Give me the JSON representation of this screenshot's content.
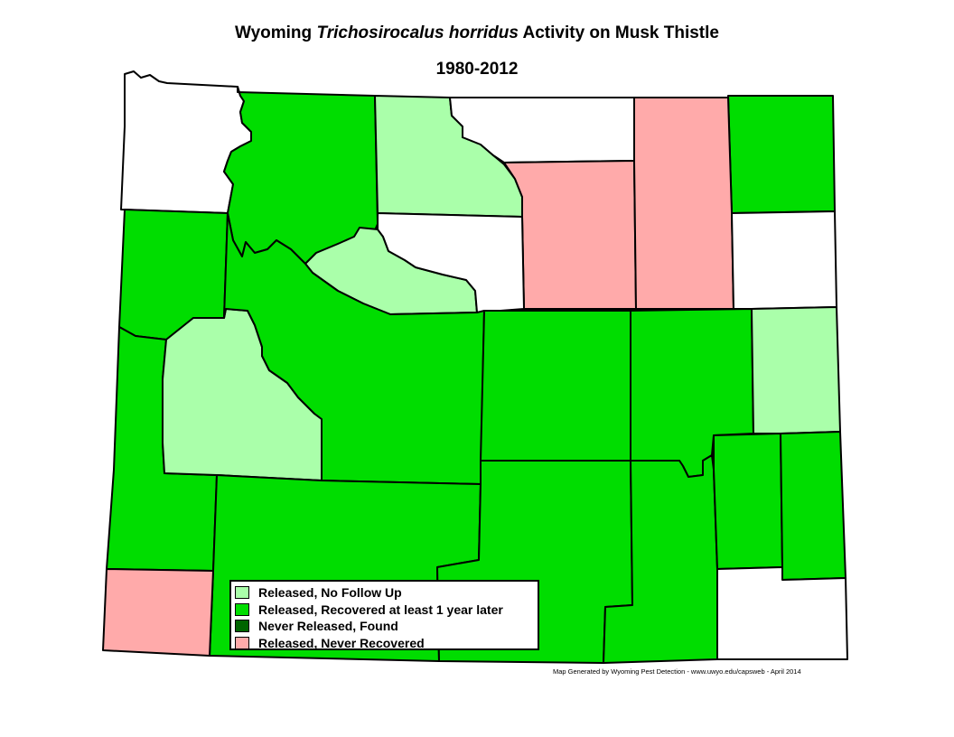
{
  "title": {
    "before": "Wyoming",
    "species": "Trichosirocalus horridus",
    "after": "Activity on Musk Thistle"
  },
  "subtitle": "1980-2012",
  "colors": {
    "released_no_follow_up": "#aaffaa",
    "released_recovered": "#00dd00",
    "never_released_found": "#006400",
    "released_never_recovered": "#ffaaaa",
    "no_activity": "#ffffff"
  },
  "legend": [
    {
      "label": "Released, No Follow Up",
      "status": "released_no_follow_up"
    },
    {
      "label": "Released, Recovered at least 1 year later",
      "status": "released_recovered"
    },
    {
      "label": "Never Released, Found",
      "status": "never_released_found"
    },
    {
      "label": "Released, Never Recovered",
      "status": "released_never_recovered"
    }
  ],
  "credit": "Map Generated by Wyoming Pest Detection - www.uwyo.edu/capsweb - April 2014",
  "counties": [
    {
      "key": "park",
      "status": "no_activity"
    },
    {
      "key": "big-horn",
      "status": "released_recovered"
    },
    {
      "key": "sheridan",
      "status": "released_no_follow_up"
    },
    {
      "key": "campbell",
      "status": "no_activity"
    },
    {
      "key": "crook",
      "status": "released_recovered"
    },
    {
      "key": "johnson",
      "status": "released_never_recovered"
    },
    {
      "key": "weston",
      "status": "released_never_recovered"
    },
    {
      "key": "teton",
      "status": "released_recovered"
    },
    {
      "key": "washakie",
      "status": "released_no_follow_up"
    },
    {
      "key": "hot-springs",
      "status": "no_activity"
    },
    {
      "key": "niobrara",
      "status": "no_activity"
    },
    {
      "key": "lincoln",
      "status": "released_recovered"
    },
    {
      "key": "sublette",
      "status": "released_no_follow_up"
    },
    {
      "key": "fremont",
      "status": "released_recovered"
    },
    {
      "key": "natrona",
      "status": "released_recovered"
    },
    {
      "key": "converse",
      "status": "released_recovered"
    },
    {
      "key": "goshen",
      "status": "released_no_follow_up"
    },
    {
      "key": "sweetwater",
      "status": "released_recovered"
    },
    {
      "key": "carbon",
      "status": "released_recovered"
    },
    {
      "key": "albany",
      "status": "released_recovered"
    },
    {
      "key": "platte",
      "status": "released_recovered"
    },
    {
      "key": "laramie",
      "status": "released_recovered"
    },
    {
      "key": "laramie-south",
      "status": "no_activity"
    },
    {
      "key": "uinta",
      "status": "released_never_recovered"
    }
  ]
}
